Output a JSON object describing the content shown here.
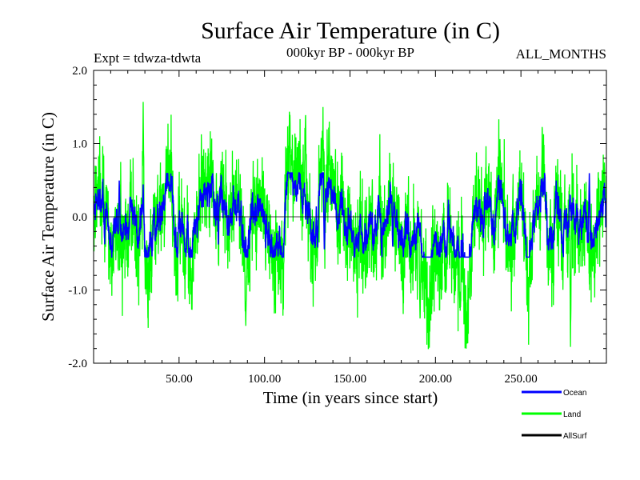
{
  "chart_data": {
    "type": "line",
    "title": "Surface Air Temperature (in C)",
    "subtitle_left": "Expt = tdwza-tdwta",
    "subtitle_center": "000kyr BP - 000kyr BP",
    "subtitle_right": "ALL_MONTHS",
    "xlabel": "Time (in years since start)",
    "ylabel": "Surface Air Temperature (in C)",
    "xlim": [
      0,
      300
    ],
    "ylim": [
      -2.0,
      2.0
    ],
    "x_ticks": [
      50,
      100,
      150,
      200,
      250
    ],
    "x_tick_labels": [
      "50.00",
      "100.00",
      "150.00",
      "200.00",
      "250.00"
    ],
    "y_ticks": [
      -2.0,
      -1.0,
      0.0,
      1.0,
      2.0
    ],
    "y_tick_labels": [
      "-2.0",
      "-1.0",
      "0.0",
      "1.0",
      "2.0"
    ],
    "grid": false,
    "zero_line": true,
    "legend_position": "bottom-right",
    "series": [
      {
        "name": "Land",
        "color": "#00ff00",
        "x_start": 0,
        "x_end": 300,
        "y_range": [
          -1.8,
          1.6
        ],
        "peaks": [
          [
            29,
            1.6
          ],
          [
            89,
            -1.55
          ],
          [
            124,
            1.45
          ],
          [
            191,
            -1.45
          ],
          [
            279,
            -1.8
          ]
        ]
      },
      {
        "name": "Ocean",
        "color": "#0000ff",
        "x_start": 0,
        "x_end": 300,
        "y_range": [
          -0.55,
          0.6
        ],
        "peaks": [
          [
            15,
            0.5
          ],
          [
            29,
            0.45
          ],
          [
            135,
            -0.5
          ],
          [
            175,
            -0.45
          ],
          [
            290,
            0.6
          ]
        ]
      },
      {
        "name": "AllSurf",
        "color": "#000000",
        "x_start": 0,
        "x_end": 300,
        "values": []
      }
    ]
  }
}
